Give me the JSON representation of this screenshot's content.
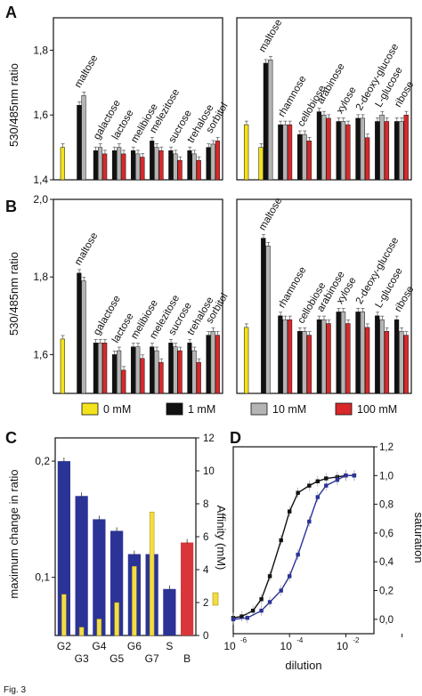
{
  "colors": {
    "c0": "#f4e21a",
    "c1": "#111111",
    "c10": "#b4b4b4",
    "c100": "#d8282a",
    "blue": "#2b3397",
    "red": "#d9363c",
    "yellow": "#f2dc46",
    "dark": "#111111"
  },
  "legend": {
    "items": [
      {
        "label": "0 mM",
        "color": "#f4e21a"
      },
      {
        "label": "1 mM",
        "color": "#111111"
      },
      {
        "label": "10 mM",
        "color": "#b4b4b4"
      },
      {
        "label": "100 mM",
        "color": "#d8282a"
      }
    ]
  },
  "caption": "Fig. 3",
  "chart_data": [
    {
      "panel": "A",
      "side": "left",
      "type": "bar",
      "ylabel": "530/485nm ratio",
      "ylim": [
        1.4,
        1.9
      ],
      "yticks": [
        "1,4",
        "1,6",
        "1,8"
      ],
      "categories": [
        "",
        "maltose",
        "galactose",
        "lactose",
        "melibiose",
        "melezitose",
        "sucrose",
        "trehalose",
        "sorbitol"
      ],
      "groups": [
        [
          1.5
        ],
        [
          1.63,
          1.66
        ],
        [
          1.49,
          1.5,
          1.48
        ],
        [
          1.49,
          1.5,
          1.48
        ],
        [
          1.49,
          1.48,
          1.47
        ],
        [
          1.52,
          1.5,
          1.49
        ],
        [
          1.49,
          1.48,
          1.46
        ],
        [
          1.49,
          1.48,
          1.46
        ],
        [
          1.5,
          1.51,
          1.52
        ]
      ]
    },
    {
      "panel": "A",
      "side": "right",
      "type": "bar",
      "ylim": [
        1.4,
        1.9
      ],
      "categories": [
        "",
        "maltose",
        "rhamnose",
        "cellobiose",
        "arabinose",
        "xylose",
        "2-deoxy-glucose",
        "L-glucose",
        "ribose"
      ],
      "groups": [
        [
          1.57
        ],
        [
          1.5,
          1.76,
          1.77
        ],
        [
          1.57,
          1.57,
          1.57
        ],
        [
          1.54,
          1.54,
          1.52
        ],
        [
          1.61,
          1.6,
          1.59
        ],
        [
          1.58,
          1.58,
          1.57
        ],
        [
          1.59,
          1.59,
          1.53
        ],
        [
          1.58,
          1.6,
          1.58
        ],
        [
          1.58,
          1.58,
          1.6
        ]
      ]
    },
    {
      "panel": "B",
      "side": "left",
      "type": "bar",
      "ylabel": "530/485nm ratio",
      "ylim": [
        1.5,
        2.0
      ],
      "yticks": [
        "1,6",
        "1,8",
        "2,0"
      ],
      "categories": [
        "",
        "maltose",
        "galactose",
        "lactose",
        "melibiose",
        "melezitose",
        "sucrose",
        "trehalose",
        "sorbitol"
      ],
      "groups": [
        [
          1.64
        ],
        [
          1.81,
          1.79
        ],
        [
          1.63,
          1.63,
          1.63
        ],
        [
          1.6,
          1.61,
          1.56
        ],
        [
          1.62,
          1.62,
          1.59
        ],
        [
          1.62,
          1.61,
          1.58
        ],
        [
          1.63,
          1.62,
          1.61
        ],
        [
          1.63,
          1.61,
          1.58
        ],
        [
          1.65,
          1.66,
          1.65
        ]
      ]
    },
    {
      "panel": "B",
      "side": "right",
      "type": "bar",
      "ylim": [
        1.5,
        2.0
      ],
      "categories": [
        "",
        "maltose",
        "rhamnose",
        "cellobiose",
        "arabinose",
        "xylose",
        "2-deoxy-glucose",
        "L-glucose",
        "ribose"
      ],
      "groups": [
        [
          1.67
        ],
        [
          1.9,
          1.88
        ],
        [
          1.7,
          1.69,
          1.69
        ],
        [
          1.66,
          1.66,
          1.65
        ],
        [
          1.69,
          1.69,
          1.68
        ],
        [
          1.71,
          1.71,
          1.68
        ],
        [
          1.71,
          1.71,
          1.67
        ],
        [
          1.7,
          1.69,
          1.66
        ],
        [
          1.69,
          1.66,
          1.65
        ]
      ]
    },
    {
      "panel": "C",
      "type": "bar",
      "ylabel": "maximum change in ratio",
      "ylabel2": "Affinity (mM)",
      "ylim": [
        0.05,
        0.22
      ],
      "yticks": [
        "0,1",
        "0,2"
      ],
      "y2lim": [
        0,
        12
      ],
      "y2ticks": [
        "0",
        "2",
        "4",
        "6",
        "8",
        "10",
        "12"
      ],
      "categories": [
        "G2",
        "G3",
        "G4",
        "G5",
        "G6",
        "G7",
        "S",
        "B"
      ],
      "values": [
        0.2,
        0.17,
        0.15,
        0.14,
        0.12,
        0.12,
        0.09,
        0.13
      ],
      "affinity": [
        2.5,
        0.5,
        1.0,
        2.0,
        4.2,
        7.5,
        0.0,
        0.0
      ]
    },
    {
      "panel": "D",
      "type": "scatter",
      "xlabel": "dilution",
      "ylabel": "saturation",
      "xlim": [
        -6,
        -1
      ],
      "ylim": [
        -0.1,
        1.2
      ],
      "xticks": [
        "10",
        "10",
        "10",
        "10"
      ],
      "xtick_exponents": [
        "-6",
        "-4",
        "-2",
        ""
      ],
      "yticks": [
        "0,0",
        "0,2",
        "0,4",
        "0,6",
        "0,8",
        "1,0",
        "1,2"
      ],
      "series": [
        {
          "color": "#111111",
          "logx": [
            -6,
            -5.7,
            -5.3,
            -5,
            -4.7,
            -4.3,
            -4,
            -3.7,
            -3.3,
            -3,
            -2.7,
            -2.3,
            -2,
            -1.7
          ],
          "y": [
            0.01,
            0.02,
            0.06,
            0.14,
            0.3,
            0.55,
            0.75,
            0.88,
            0.93,
            0.96,
            0.98,
            0.99,
            1.0,
            1.0
          ]
        },
        {
          "color": "#2b3397",
          "logx": [
            -6,
            -5.5,
            -5,
            -4.7,
            -4.3,
            -4,
            -3.7,
            -3.3,
            -3,
            -2.7,
            -2.3,
            -2,
            -1.7
          ],
          "y": [
            0.0,
            0.01,
            0.06,
            0.12,
            0.2,
            0.3,
            0.45,
            0.68,
            0.85,
            0.93,
            0.97,
            1.0,
            1.0
          ]
        }
      ]
    }
  ]
}
